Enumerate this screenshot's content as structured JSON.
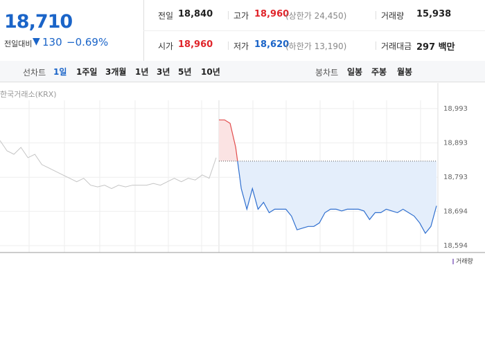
{
  "quote": {
    "price": "18,710",
    "change_label": "전일대비",
    "change": "130",
    "change_pct": "−0.69%"
  },
  "stats": [
    {
      "label": "전일",
      "value": "18,840",
      "color": "#222"
    },
    {
      "label": "고가",
      "value": "18,960",
      "extra": "(상한가 24,450)",
      "color": "#e0242a"
    },
    {
      "label": "거래량",
      "value": "15,938",
      "color": "#222"
    },
    {
      "label": "시가",
      "value": "18,960",
      "color": "#e0242a"
    },
    {
      "label": "저가",
      "value": "18,620",
      "extra": "(하한가 13,190)",
      "color": "#1a64c8"
    },
    {
      "label": "거래대금",
      "value": "297 백만",
      "color": "#222"
    }
  ],
  "tabs": {
    "line_label": "선차트",
    "line": [
      "1일",
      "1주일",
      "3개월",
      "1년",
      "3년",
      "5년",
      "10년"
    ],
    "candle_label": "봉차트",
    "candle": [
      "일봉",
      "주봉",
      "월봉"
    ]
  },
  "chart_data": {
    "type": "line",
    "source": "한국거래소(KRX)",
    "ylim": [
      18574,
      19017
    ],
    "yticks": [
      {
        "value": 18594,
        "label": "18,594"
      },
      {
        "value": 18694,
        "label": "18,694"
      },
      {
        "value": 18793,
        "label": "18,793"
      },
      {
        "value": 18893,
        "label": "18,893"
      },
      {
        "value": 18993,
        "label": "18,993"
      }
    ],
    "prev_close": 18840,
    "series": [
      {
        "color": "#c4c4c4",
        "values": [
          18900,
          18870,
          18860,
          18880,
          18850,
          18860,
          18830,
          18820,
          18810,
          18800,
          18790,
          18780,
          18790,
          18770,
          18765,
          18770,
          18760,
          18770,
          18765,
          18770,
          18770,
          18770,
          18775,
          18770,
          18780,
          18790,
          18780,
          18790,
          18785,
          18800,
          18790,
          18850
        ]
      },
      {
        "color": "#2f6fcf",
        "up_color": "#e24b4b",
        "values": [
          18960,
          18960,
          18950,
          18880,
          18760,
          18700,
          18760,
          18700,
          18720,
          18690,
          18700,
          18700,
          18700,
          18680,
          18640,
          18645,
          18650,
          18650,
          18660,
          18690,
          18700,
          18700,
          18695,
          18700,
          18700,
          18700,
          18695,
          18670,
          18690,
          18690,
          18700,
          18695,
          18690,
          18700,
          18690,
          18680,
          18660,
          18630,
          18650,
          18710
        ]
      }
    ],
    "volume_label": "거래량"
  }
}
